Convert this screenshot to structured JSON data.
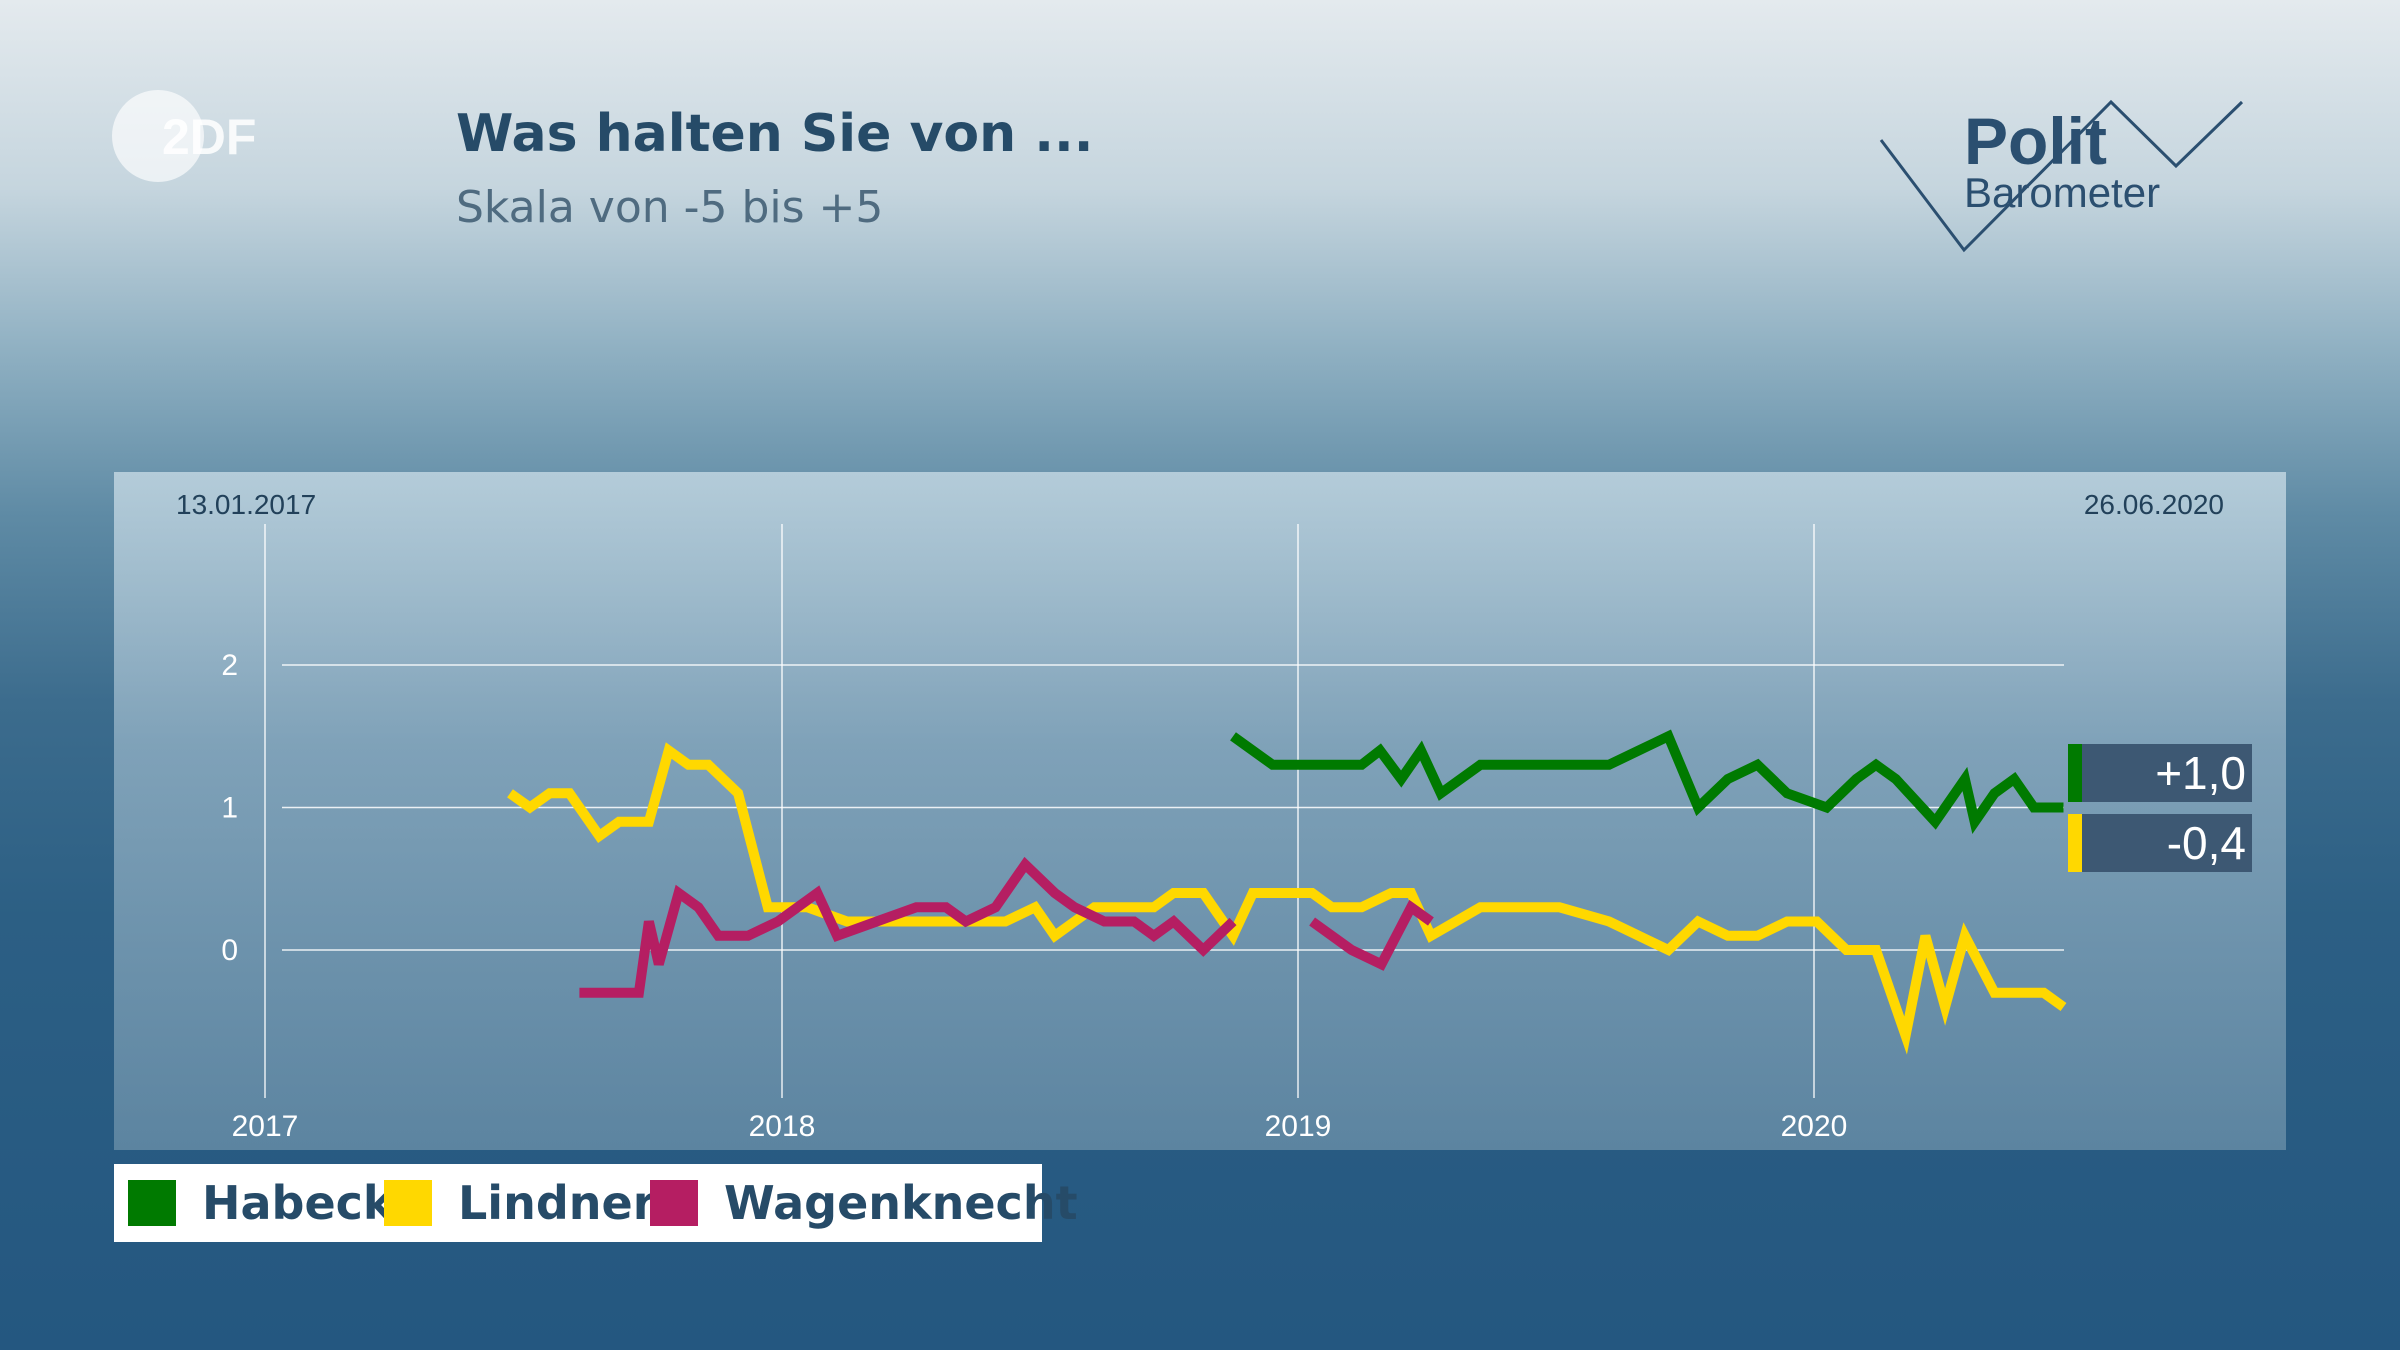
{
  "logo": {
    "text": "2DF"
  },
  "header": {
    "title": "Was halten Sie von ...",
    "subtitle": "Skala von -5 bis +5"
  },
  "brand": {
    "line1": "Polit",
    "line2": "Barometer"
  },
  "colors": {
    "habeck": "#007a00",
    "lindner": "#ffd800",
    "wagenknecht": "#b51e62"
  },
  "chart_data": {
    "type": "line",
    "title": "Was halten Sie von ...",
    "subtitle": "Skala von -5 bis +5",
    "start_date_label": "13.01.2017",
    "end_date_label": "26.06.2020",
    "x_ticks": [
      "2017",
      "2018",
      "2019",
      "2020"
    ],
    "y_ticks": [
      "0",
      "1",
      "2"
    ],
    "ylim": [
      -0.9,
      2.9
    ],
    "grid": true,
    "legend_position": "bottom-left",
    "series": [
      {
        "name": "Habeck",
        "color": "#007a00",
        "end_value_label": "+1,0",
        "points": [
          [
            "2018-11-16",
            1.5
          ],
          [
            "2018-12-14",
            1.3
          ],
          [
            "2019-01-18",
            1.3
          ],
          [
            "2019-02-15",
            1.3
          ],
          [
            "2019-02-28",
            1.4
          ],
          [
            "2019-03-15",
            1.2
          ],
          [
            "2019-03-29",
            1.4
          ],
          [
            "2019-04-12",
            1.1
          ],
          [
            "2019-05-10",
            1.3
          ],
          [
            "2019-06-07",
            1.3
          ],
          [
            "2019-07-12",
            1.3
          ],
          [
            "2019-08-09",
            1.3
          ],
          [
            "2019-08-30",
            1.4
          ],
          [
            "2019-09-20",
            1.5
          ],
          [
            "2019-10-11",
            1.0
          ],
          [
            "2019-11-01",
            1.2
          ],
          [
            "2019-11-22",
            1.3
          ],
          [
            "2019-12-13",
            1.1
          ],
          [
            "2020-01-10",
            1.0
          ],
          [
            "2020-01-31",
            1.2
          ],
          [
            "2020-02-14",
            1.3
          ],
          [
            "2020-02-28",
            1.2
          ],
          [
            "2020-03-27",
            0.9
          ],
          [
            "2020-04-17",
            1.2
          ],
          [
            "2020-04-24",
            0.9
          ],
          [
            "2020-05-08",
            1.1
          ],
          [
            "2020-05-22",
            1.2
          ],
          [
            "2020-06-05",
            1.0
          ],
          [
            "2020-06-26",
            1.0
          ]
        ]
      },
      {
        "name": "Lindner",
        "color": "#ffd800",
        "end_value_label": "-0,4",
        "points": [
          [
            "2017-06-23",
            1.1
          ],
          [
            "2017-07-07",
            1.0
          ],
          [
            "2017-07-21",
            1.1
          ],
          [
            "2017-08-04",
            1.1
          ],
          [
            "2017-08-25",
            0.8
          ],
          [
            "2017-09-08",
            0.9
          ],
          [
            "2017-09-29",
            0.9
          ],
          [
            "2017-10-13",
            1.4
          ],
          [
            "2017-10-27",
            1.3
          ],
          [
            "2017-11-10",
            1.3
          ],
          [
            "2017-12-01",
            1.1
          ],
          [
            "2017-12-22",
            0.3
          ],
          [
            "2018-01-19",
            0.3
          ],
          [
            "2018-02-16",
            0.2
          ],
          [
            "2018-03-16",
            0.2
          ],
          [
            "2018-04-13",
            0.2
          ],
          [
            "2018-05-11",
            0.2
          ],
          [
            "2018-06-08",
            0.2
          ],
          [
            "2018-06-29",
            0.3
          ],
          [
            "2018-07-13",
            0.1
          ],
          [
            "2018-07-27",
            0.2
          ],
          [
            "2018-08-10",
            0.3
          ],
          [
            "2018-08-31",
            0.3
          ],
          [
            "2018-09-21",
            0.3
          ],
          [
            "2018-10-05",
            0.4
          ],
          [
            "2018-10-26",
            0.4
          ],
          [
            "2018-11-09",
            0.2
          ],
          [
            "2018-11-16",
            0.1
          ],
          [
            "2018-11-30",
            0.4
          ],
          [
            "2018-12-21",
            0.4
          ],
          [
            "2019-01-11",
            0.4
          ],
          [
            "2019-01-25",
            0.3
          ],
          [
            "2019-02-15",
            0.3
          ],
          [
            "2019-03-08",
            0.4
          ],
          [
            "2019-03-22",
            0.4
          ],
          [
            "2019-04-05",
            0.1
          ],
          [
            "2019-05-10",
            0.3
          ],
          [
            "2019-06-07",
            0.3
          ],
          [
            "2019-07-05",
            0.3
          ],
          [
            "2019-08-09",
            0.2
          ],
          [
            "2019-08-30",
            0.1
          ],
          [
            "2019-09-20",
            0.0
          ],
          [
            "2019-10-11",
            0.2
          ],
          [
            "2019-11-01",
            0.1
          ],
          [
            "2019-11-22",
            0.1
          ],
          [
            "2019-12-13",
            0.2
          ],
          [
            "2020-01-03",
            0.2
          ],
          [
            "2020-01-24",
            0.0
          ],
          [
            "2020-02-14",
            0.0
          ],
          [
            "2020-03-06",
            -0.6
          ],
          [
            "2020-03-20",
            0.1
          ],
          [
            "2020-04-03",
            -0.4
          ],
          [
            "2020-04-17",
            0.1
          ],
          [
            "2020-05-08",
            -0.3
          ],
          [
            "2020-05-29",
            -0.3
          ],
          [
            "2020-06-12",
            -0.3
          ],
          [
            "2020-06-26",
            -0.4
          ]
        ]
      },
      {
        "name": "Wagenknecht",
        "color": "#b51e62",
        "segments": [
          [
            [
              "2017-08-11",
              -0.3
            ],
            [
              "2017-09-01",
              -0.3
            ],
            [
              "2017-09-22",
              -0.3
            ],
            [
              "2017-09-29",
              0.2
            ],
            [
              "2017-10-06",
              -0.1
            ],
            [
              "2017-10-20",
              0.4
            ],
            [
              "2017-11-03",
              0.3
            ],
            [
              "2017-11-17",
              0.1
            ],
            [
              "2017-12-08",
              0.1
            ],
            [
              "2017-12-29",
              0.2
            ],
            [
              "2018-01-26",
              0.4
            ],
            [
              "2018-02-09",
              0.1
            ],
            [
              "2018-03-09",
              0.2
            ],
            [
              "2018-04-06",
              0.3
            ],
            [
              "2018-04-27",
              0.3
            ],
            [
              "2018-05-11",
              0.2
            ],
            [
              "2018-06-01",
              0.3
            ],
            [
              "2018-06-22",
              0.6
            ],
            [
              "2018-07-13",
              0.4
            ],
            [
              "2018-07-27",
              0.3
            ],
            [
              "2018-08-17",
              0.2
            ],
            [
              "2018-09-07",
              0.2
            ],
            [
              "2018-09-21",
              0.1
            ],
            [
              "2018-10-05",
              0.2
            ],
            [
              "2018-10-26",
              0.0
            ],
            [
              "2018-11-16",
              0.2
            ]
          ],
          [
            [
              "2019-01-11",
              0.2
            ],
            [
              "2019-02-08",
              0.0
            ],
            [
              "2019-03-01",
              -0.1
            ],
            [
              "2019-03-22",
              0.3
            ],
            [
              "2019-04-05",
              0.2
            ]
          ]
        ]
      }
    ]
  },
  "legend": [
    {
      "label": "Habeck",
      "color": "#007a00"
    },
    {
      "label": "Lindner",
      "color": "#ffd800"
    },
    {
      "label": "Wagenknecht",
      "color": "#b51e62"
    }
  ]
}
